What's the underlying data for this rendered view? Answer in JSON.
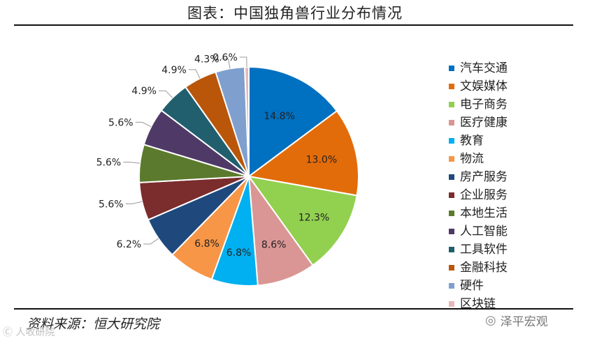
{
  "header": {
    "title": "图表：中国独角兽行业分布情况"
  },
  "footer": {
    "source": "资料来源：恒大研究院"
  },
  "watermarks": {
    "left": "Ⓒ 人收研院",
    "right": "泽平宏观",
    "right_icon": "wechat-icon"
  },
  "chart_data": {
    "type": "pie",
    "title": "图表：中国独角兽行业分布情况",
    "categories": [
      "汽车交通",
      "文娱媒体",
      "电子商务",
      "医疗健康",
      "教育",
      "物流",
      "房产服务",
      "企业服务",
      "本地生活",
      "人工智能",
      "工具软件",
      "金融科技",
      "硬件",
      "区块链"
    ],
    "values": [
      14.8,
      13.0,
      12.3,
      8.6,
      6.8,
      6.8,
      6.2,
      5.6,
      5.6,
      5.6,
      4.9,
      4.9,
      4.3,
      0.6
    ],
    "labels": [
      "14.8%",
      "13.0%",
      "12.3%",
      "8.6%",
      "6.8%",
      "6.8%",
      "6.2%",
      "5.6%",
      "5.6%",
      "5.6%",
      "4.9%",
      "4.9%",
      "4.3%",
      "0.6%"
    ],
    "colors": [
      "#0070C0",
      "#E36C0A",
      "#92D050",
      "#DA9694",
      "#00B0F0",
      "#F79646",
      "#1F497D",
      "#7B2C2C",
      "#5B7A2E",
      "#4F3A67",
      "#215F6E",
      "#B9560A",
      "#7F9FCF",
      "#E6B9B8"
    ],
    "legend_position": "right",
    "start_angle_deg": 0,
    "direction": "clockwise"
  }
}
